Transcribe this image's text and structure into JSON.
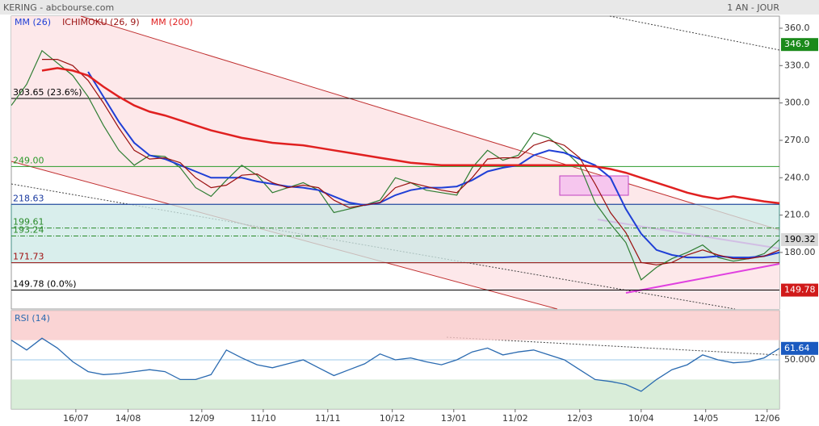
{
  "chart_data": {
    "type": "line",
    "title": "KERING - abcbourse.com",
    "period": "1 AN - JOUR",
    "x": [
      0,
      5,
      10,
      15,
      20,
      25,
      30,
      35,
      40,
      45,
      50,
      55,
      60,
      65,
      70,
      75,
      80,
      85,
      90,
      95,
      100,
      105,
      110,
      115,
      120,
      125,
      130,
      135,
      140,
      145,
      150,
      155,
      160,
      165,
      170,
      175,
      180,
      185,
      190,
      195,
      200,
      205,
      210,
      215,
      220,
      225,
      230,
      235,
      240,
      245,
      250
    ],
    "xlim": [
      0,
      250
    ],
    "xticks": [
      {
        "value": 21,
        "label": "16/07"
      },
      {
        "value": 38,
        "label": "14/08"
      },
      {
        "value": 62,
        "label": "12/09"
      },
      {
        "value": 82,
        "label": "11/10"
      },
      {
        "value": 103,
        "label": "11/11"
      },
      {
        "value": 124,
        "label": "10/12"
      },
      {
        "value": 144,
        "label": "13/01"
      },
      {
        "value": 164,
        "label": "11/02"
      },
      {
        "value": 185,
        "label": "12/03"
      },
      {
        "value": 205,
        "label": "10/04"
      },
      {
        "value": 226,
        "label": "14/05"
      },
      {
        "value": 246,
        "label": "12/06"
      }
    ],
    "ylim": [
      134.6,
      369.7
    ],
    "yticks": [
      {
        "value": 180,
        "label": "180.00"
      },
      {
        "value": 210,
        "label": "210.0"
      },
      {
        "value": 240,
        "label": "240.0"
      },
      {
        "value": 270,
        "label": "270.0"
      },
      {
        "value": 300,
        "label": "300.0"
      },
      {
        "value": 330,
        "label": "330.0"
      },
      {
        "value": 360,
        "label": "360.0"
      }
    ],
    "series": [
      {
        "color": "#2e7d32",
        "values": [
          298,
          315,
          342,
          332,
          322,
          305,
          282,
          262,
          250,
          258,
          257,
          248,
          232,
          225,
          238,
          250,
          242,
          228,
          232,
          236,
          230,
          212,
          215,
          218,
          222,
          240,
          236,
          230,
          228,
          226,
          248,
          262,
          254,
          258,
          276,
          272,
          262,
          250,
          220,
          203,
          188,
          158,
          168,
          175,
          180,
          186,
          176,
          173,
          175,
          179,
          190.32
        ]
      },
      {
        "name": "MM (26)",
        "color": "#1f3fd6",
        "values": [
          null,
          null,
          null,
          null,
          null,
          325,
          305,
          285,
          268,
          258,
          255,
          250,
          245,
          240,
          240,
          240,
          237,
          235,
          233,
          232,
          230,
          225,
          220,
          218,
          220,
          226,
          230,
          232,
          232,
          233,
          238,
          245,
          248,
          250,
          258,
          262,
          260,
          255,
          250,
          240,
          215,
          195,
          182,
          178,
          176,
          176,
          177,
          176,
          176,
          177,
          180
        ]
      },
      {
        "name": "ICHIMOKU (26, 9)",
        "color": "#9a1010",
        "values": [
          null,
          null,
          335,
          335,
          330,
          318,
          300,
          280,
          262,
          255,
          256,
          252,
          240,
          232,
          234,
          242,
          243,
          236,
          232,
          234,
          232,
          222,
          216,
          218,
          220,
          232,
          236,
          233,
          230,
          228,
          240,
          255,
          256,
          256,
          266,
          270,
          266,
          256,
          235,
          212,
          196,
          172,
          170,
          172,
          178,
          182,
          178,
          175,
          175,
          177,
          182
        ]
      },
      {
        "name": "MM (200)",
        "color": "#e02020",
        "values": [
          null,
          null,
          326,
          328,
          326,
          322,
          313,
          305,
          298,
          293,
          290,
          286,
          282,
          278,
          275,
          272,
          270,
          268,
          267,
          266,
          264,
          262,
          260,
          258,
          256,
          254,
          252,
          251,
          250,
          250,
          250,
          250,
          250,
          250,
          250,
          250,
          250,
          250,
          249,
          247,
          244,
          240,
          236,
          232,
          228,
          225,
          223,
          225,
          223,
          221,
          219.5
        ]
      }
    ],
    "levels": [
      {
        "value": 303.65,
        "label": "303.65 (23.6%)",
        "color": "#000000"
      },
      {
        "value": 249,
        "label": "249.00",
        "color": "#2a9a2a"
      },
      {
        "value": 218.63,
        "label": "218.63",
        "color": "#1a3aa0"
      },
      {
        "value": 199.61,
        "label": "199.61",
        "color": "#2a8a2a"
      },
      {
        "value": 193.24,
        "label": "193.24",
        "color": "#2a8a2a"
      },
      {
        "value": 171.73,
        "label": "171.73",
        "color": "#a01010"
      },
      {
        "value": 149.78,
        "label": "149.78 (0.0%)",
        "color": "#000000"
      }
    ],
    "tags": [
      {
        "value": 346.9,
        "label": "346.9",
        "color": "#1a8a1a"
      },
      {
        "value": 190.32,
        "label": "190.32",
        "color": "#d8d8d8"
      },
      {
        "value": 149.78,
        "label": "149.78",
        "color": "#d01a1a"
      }
    ],
    "rsi": {
      "name": "RSI (14)",
      "color": "#2a6ab0",
      "values": [
        70,
        60,
        72,
        62,
        48,
        38,
        35,
        36,
        38,
        40,
        38,
        30,
        30,
        35,
        60,
        52,
        45,
        42,
        46,
        50,
        42,
        34,
        40,
        46,
        56,
        50,
        52,
        48,
        45,
        50,
        58,
        62,
        55,
        58,
        60,
        55,
        50,
        40,
        30,
        28,
        25,
        18,
        30,
        40,
        45,
        55,
        50,
        47,
        48,
        52,
        61.64
      ],
      "ylim": [
        0,
        100
      ],
      "yticks": [
        {
          "value": 50,
          "label": "50.000"
        }
      ],
      "overbought": 70,
      "oversold": 30,
      "tag": {
        "value": 61.64,
        "label": "61.64",
        "color": "#1a5ac0"
      }
    }
  }
}
